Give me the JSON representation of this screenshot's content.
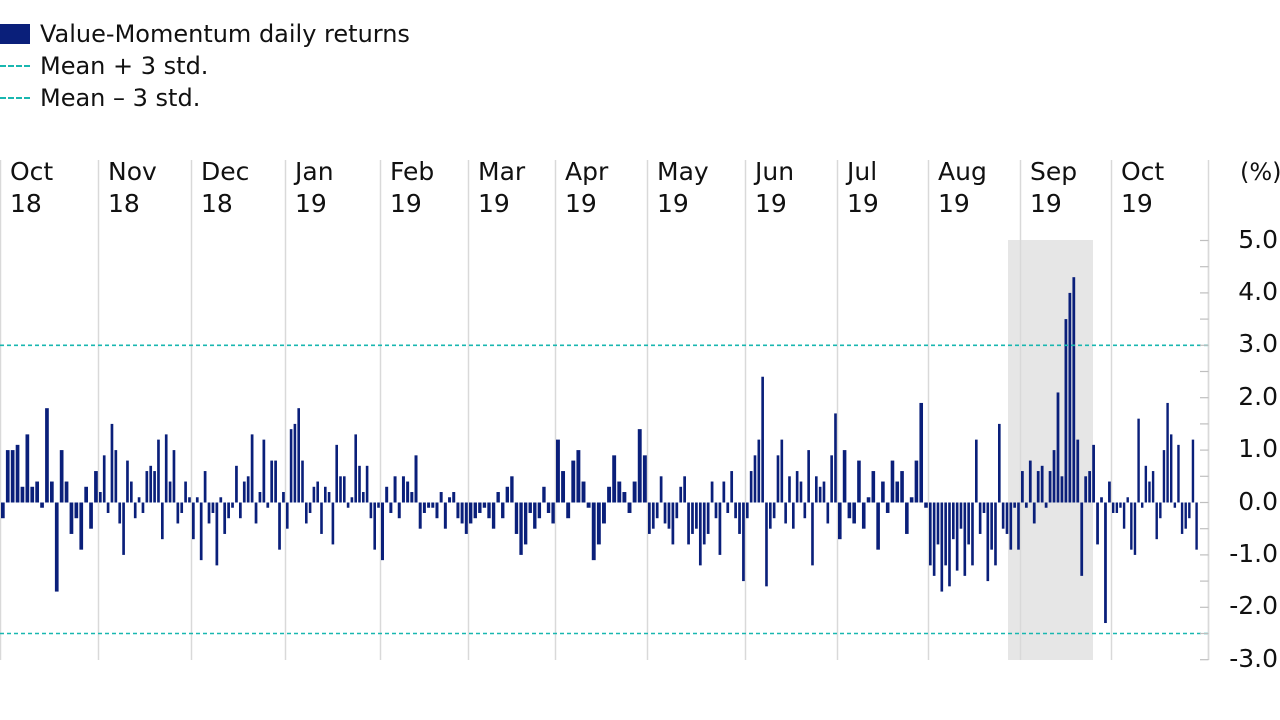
{
  "legend": {
    "bar_label": "Value-Momentum daily returns",
    "upper_label": "Mean + 3 std.",
    "lower_label": "Mean – 3 std."
  },
  "colors": {
    "bar": "#0a1f7a",
    "threshold": "#19b7b0",
    "gridline": "#d9d9d9",
    "highlight": "#e6e6e6"
  },
  "chart_data": {
    "type": "bar",
    "unit_label": "(%)",
    "ylim": [
      -3.0,
      5.0
    ],
    "yticks": [
      "5.0",
      "4.0",
      "3.0",
      "2.0",
      "1.0",
      "0.0",
      "-1.0",
      "-2.0",
      "-3.0"
    ],
    "ytick_values": [
      5,
      4,
      3,
      2,
      1,
      0,
      -1,
      -2,
      -3
    ],
    "months": [
      {
        "month": "Oct",
        "year": "18"
      },
      {
        "month": "Nov",
        "year": "18"
      },
      {
        "month": "Dec",
        "year": "18"
      },
      {
        "month": "Jan",
        "year": "19"
      },
      {
        "month": "Feb",
        "year": "19"
      },
      {
        "month": "Mar",
        "year": "19"
      },
      {
        "month": "Apr",
        "year": "19"
      },
      {
        "month": "May",
        "year": "19"
      },
      {
        "month": "Jun",
        "year": "19"
      },
      {
        "month": "Jul",
        "year": "19"
      },
      {
        "month": "Aug",
        "year": "19"
      },
      {
        "month": "Sep",
        "year": "19"
      },
      {
        "month": "Oct",
        "year": "19"
      }
    ],
    "mean_plus_3std": 3.0,
    "mean_minus_3std": -2.5,
    "highlight_period": "Sep 19",
    "series": [
      {
        "name": "Value-Momentum daily returns",
        "monthly_values": [
          [
            -0.3,
            1.0,
            1.0,
            1.1,
            0.3,
            1.3,
            0.3,
            0.4,
            -0.1,
            1.8,
            0.4,
            -1.7,
            1.0,
            0.4,
            -0.6,
            -0.3,
            -0.9,
            0.3,
            -0.5,
            0.6
          ],
          [
            0.2,
            0.9,
            -0.2,
            1.5,
            1.0,
            -0.4,
            -1.0,
            0.8,
            0.4,
            -0.3,
            0.1,
            -0.2,
            0.6,
            0.7,
            0.6,
            1.2,
            -0.7,
            1.3,
            0.4,
            1.0,
            -0.4,
            -0.2,
            0.4,
            0.1
          ],
          [
            -0.7,
            0.1,
            -1.1,
            0.6,
            -0.4,
            -0.2,
            -1.2,
            0.1,
            -0.6,
            -0.3,
            -0.1,
            0.7,
            -0.3,
            0.4,
            0.5,
            1.3,
            -0.4,
            0.2,
            1.2,
            -0.1,
            0.8,
            0.8,
            -0.9,
            0.2
          ],
          [
            -0.5,
            1.4,
            1.5,
            1.8,
            0.8,
            -0.4,
            -0.2,
            0.3,
            0.4,
            -0.6,
            0.3,
            0.2,
            -0.8,
            1.1,
            0.5,
            0.5,
            -0.1,
            0.1,
            1.3,
            0.7,
            0.2,
            0.7,
            -0.3,
            -0.9,
            -0.1
          ],
          [
            -1.1,
            0.3,
            -0.2,
            0.5,
            -0.3,
            0.5,
            0.4,
            0.2,
            0.9,
            -0.5,
            -0.2,
            -0.1,
            -0.1,
            -0.3,
            0.2,
            -0.5,
            0.1,
            0.2,
            -0.3,
            -0.4,
            -0.6
          ],
          [
            -0.4,
            -0.3,
            -0.2,
            -0.1,
            -0.3,
            -0.5,
            0.2,
            -0.3,
            0.3,
            0.5,
            -0.6,
            -1.0,
            -0.8,
            -0.2,
            -0.5,
            -0.3,
            0.3,
            -0.2,
            -0.4
          ],
          [
            1.2,
            0.6,
            -0.3,
            0.8,
            1.0,
            0.4,
            -0.1,
            -1.1,
            -0.8,
            -0.4,
            0.3,
            0.9,
            0.4,
            0.2,
            -0.2,
            0.4,
            1.4,
            0.9
          ],
          [
            -0.6,
            -0.5,
            -0.3,
            0.5,
            -0.4,
            -0.5,
            -0.8,
            -0.3,
            0.3,
            0.5,
            -0.8,
            -0.6,
            -0.5,
            -1.2,
            -0.8,
            -0.6,
            0.4,
            -0.3,
            -1.0,
            0.4,
            -0.2,
            0.6,
            -0.3,
            -0.6,
            -1.5
          ],
          [
            -0.3,
            0.6,
            0.9,
            1.2,
            2.4,
            -1.6,
            -0.5,
            -0.3,
            0.9,
            1.2,
            -0.4,
            0.5,
            -0.5,
            0.6,
            0.4,
            -0.3,
            1.0,
            -1.2,
            0.5,
            0.3,
            0.4,
            -0.4,
            0.9,
            1.7
          ],
          [
            -0.7,
            1.0,
            -0.3,
            -0.4,
            0.8,
            -0.5,
            0.1,
            0.6,
            -0.9,
            0.4,
            -0.2,
            0.8,
            0.4,
            0.6,
            -0.6,
            0.1,
            0.8,
            1.9,
            -0.1
          ],
          [
            -1.2,
            -1.4,
            -0.8,
            -1.7,
            -1.2,
            -1.6,
            -0.7,
            -1.3,
            -0.5,
            -1.4,
            -0.8,
            -1.2,
            1.2,
            -0.6,
            -0.2,
            -1.5,
            -0.9,
            -1.2,
            1.5,
            -0.5,
            -0.6,
            -0.9,
            -0.1,
            -0.9
          ],
          [
            0.6,
            -0.1,
            0.8,
            -0.4,
            0.6,
            0.7,
            -0.1,
            0.6,
            1.0,
            2.1,
            0.5,
            3.5,
            4.0,
            4.3,
            1.2,
            -1.4,
            0.5,
            0.6,
            1.1,
            -0.8,
            0.1,
            -2.3,
            0.4
          ],
          [
            -0.2,
            -0.2,
            -0.1,
            -0.5,
            0.1,
            -0.9,
            -1.0,
            1.6,
            -0.1,
            0.7,
            0.4,
            0.6,
            -0.7,
            -0.3,
            1.0,
            1.9,
            1.3,
            -0.1,
            1.1,
            -0.6,
            -0.5,
            -0.3,
            1.2,
            -0.9
          ]
        ]
      }
    ]
  }
}
